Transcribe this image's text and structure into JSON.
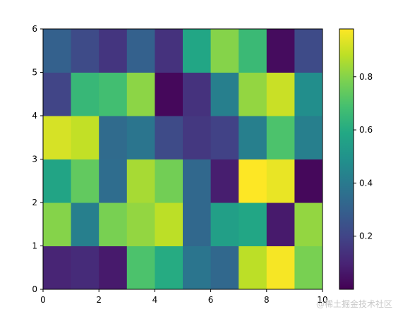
{
  "chart_data": {
    "type": "heatmap",
    "x_edges": [
      0,
      1,
      2,
      3,
      4,
      5,
      6,
      7,
      8,
      9,
      10
    ],
    "y_edges": [
      0,
      1,
      2,
      3,
      4,
      5,
      6
    ],
    "xlim": [
      0,
      10
    ],
    "ylim": [
      0,
      6
    ],
    "x_ticks": [
      0,
      2,
      4,
      6,
      8,
      10
    ],
    "y_ticks": [
      0,
      1,
      2,
      3,
      4,
      5,
      6
    ],
    "colormap": "viridis",
    "colorbar": {
      "range": [
        0.0,
        0.98
      ],
      "ticks": [
        0.2,
        0.4,
        0.6,
        0.8
      ],
      "tick_labels": [
        "0.2",
        "0.4",
        "0.6",
        "0.8"
      ],
      "placement": "right"
    },
    "grid": false,
    "title": "",
    "xlabel": "",
    "ylabel": "",
    "values": [
      [
        0.1,
        0.12,
        0.07,
        0.7,
        0.6,
        0.38,
        0.33,
        0.88,
        0.97,
        0.78
      ],
      [
        0.8,
        0.42,
        0.78,
        0.82,
        0.88,
        0.33,
        0.55,
        0.58,
        0.07,
        0.82
      ],
      [
        0.57,
        0.74,
        0.35,
        0.85,
        0.77,
        0.33,
        0.08,
        0.98,
        0.95,
        0.02
      ],
      [
        0.92,
        0.89,
        0.34,
        0.38,
        0.22,
        0.16,
        0.19,
        0.42,
        0.7,
        0.42
      ],
      [
        0.2,
        0.65,
        0.68,
        0.81,
        0.02,
        0.14,
        0.42,
        0.82,
        0.9,
        0.48
      ],
      [
        0.3,
        0.22,
        0.15,
        0.3,
        0.14,
        0.58,
        0.8,
        0.66,
        0.03,
        0.22
      ]
    ]
  },
  "watermark": "@稀土掘金技术社区"
}
